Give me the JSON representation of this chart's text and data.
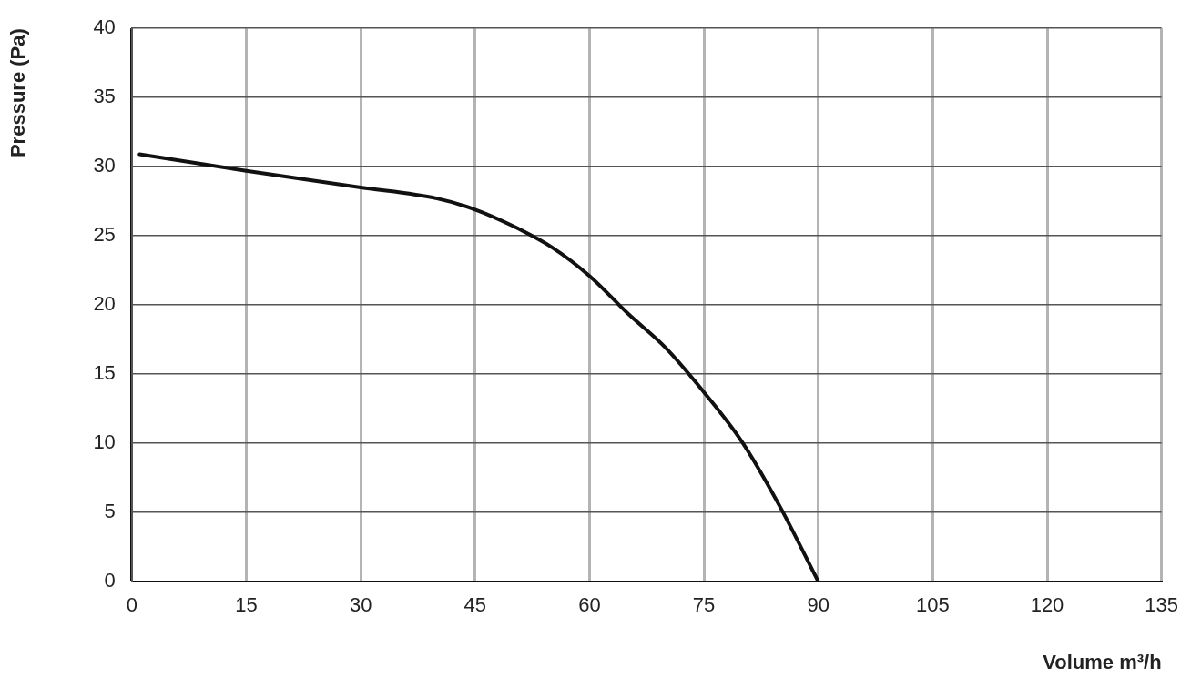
{
  "chart_data": {
    "type": "line",
    "xlabel": "Volume m³/h",
    "ylabel": "Pressure (Pa)",
    "xlim": [
      0,
      135
    ],
    "xticks": [
      0,
      15,
      30,
      45,
      60,
      75,
      90,
      105,
      120,
      135
    ],
    "ylim": [
      0,
      40
    ],
    "yticks": [
      0,
      5,
      10,
      15,
      20,
      25,
      30,
      35,
      40
    ],
    "grid": true,
    "legend": false,
    "marker": "none",
    "line_style": "solid",
    "series": [
      {
        "color": "#111111",
        "x": [
          1,
          15,
          30,
          40,
          45,
          50,
          55,
          60,
          65,
          70,
          75,
          80,
          85,
          90
        ],
        "values": [
          30.9,
          29.7,
          28.5,
          27.7,
          26.9,
          25.7,
          24.2,
          22.1,
          19.4,
          16.9,
          13.7,
          10.1,
          5.4,
          0
        ]
      }
    ]
  }
}
